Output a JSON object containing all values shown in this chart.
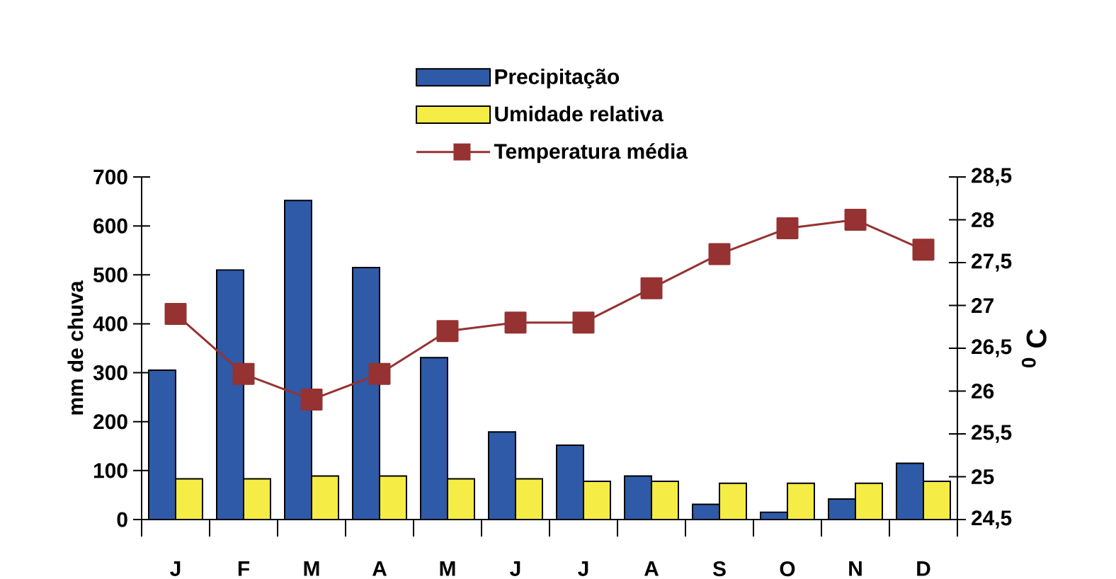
{
  "chart_data": {
    "type": "bar",
    "categories": [
      "J",
      "F",
      "M",
      "A",
      "M",
      "J",
      "J",
      "A",
      "S",
      "O",
      "N",
      "D"
    ],
    "series": [
      {
        "name": "Precipitação",
        "color": "#2e5aa8",
        "values": [
          305,
          510,
          652,
          515,
          331,
          179,
          152,
          89,
          31,
          15,
          42,
          115
        ]
      },
      {
        "name": "Umidade relativa",
        "color": "#f5ec45",
        "values": [
          83,
          83,
          89,
          89,
          83,
          83,
          78,
          78,
          74,
          74,
          74,
          78
        ]
      },
      {
        "name": "Temperatura média",
        "type": "line",
        "axis": "y2",
        "color": "#963232",
        "marker": "square",
        "values": [
          26.9,
          26.2,
          25.9,
          26.2,
          26.7,
          26.8,
          26.8,
          27.2,
          27.6,
          27.9,
          28,
          27.65
        ]
      }
    ],
    "ylabel": "mm de chuva",
    "y2label": "$^{0}$ C",
    "ylim": [
      0,
      700
    ],
    "yticks": [
      0,
      100,
      200,
      300,
      400,
      500,
      600,
      700
    ],
    "y2lim": [
      24.5,
      28.5
    ],
    "y2ticks": [
      {
        "value": 24.5,
        "label": "24,5"
      },
      25,
      {
        "value": 25.5,
        "label": "25,5"
      },
      26,
      {
        "value": 26.5,
        "label": "26,5"
      },
      27,
      {
        "value": 27.5,
        "label": "27,5"
      },
      28,
      {
        "value": 28.5,
        "label": "28,5"
      }
    ],
    "legend": "top",
    "grid": false
  }
}
